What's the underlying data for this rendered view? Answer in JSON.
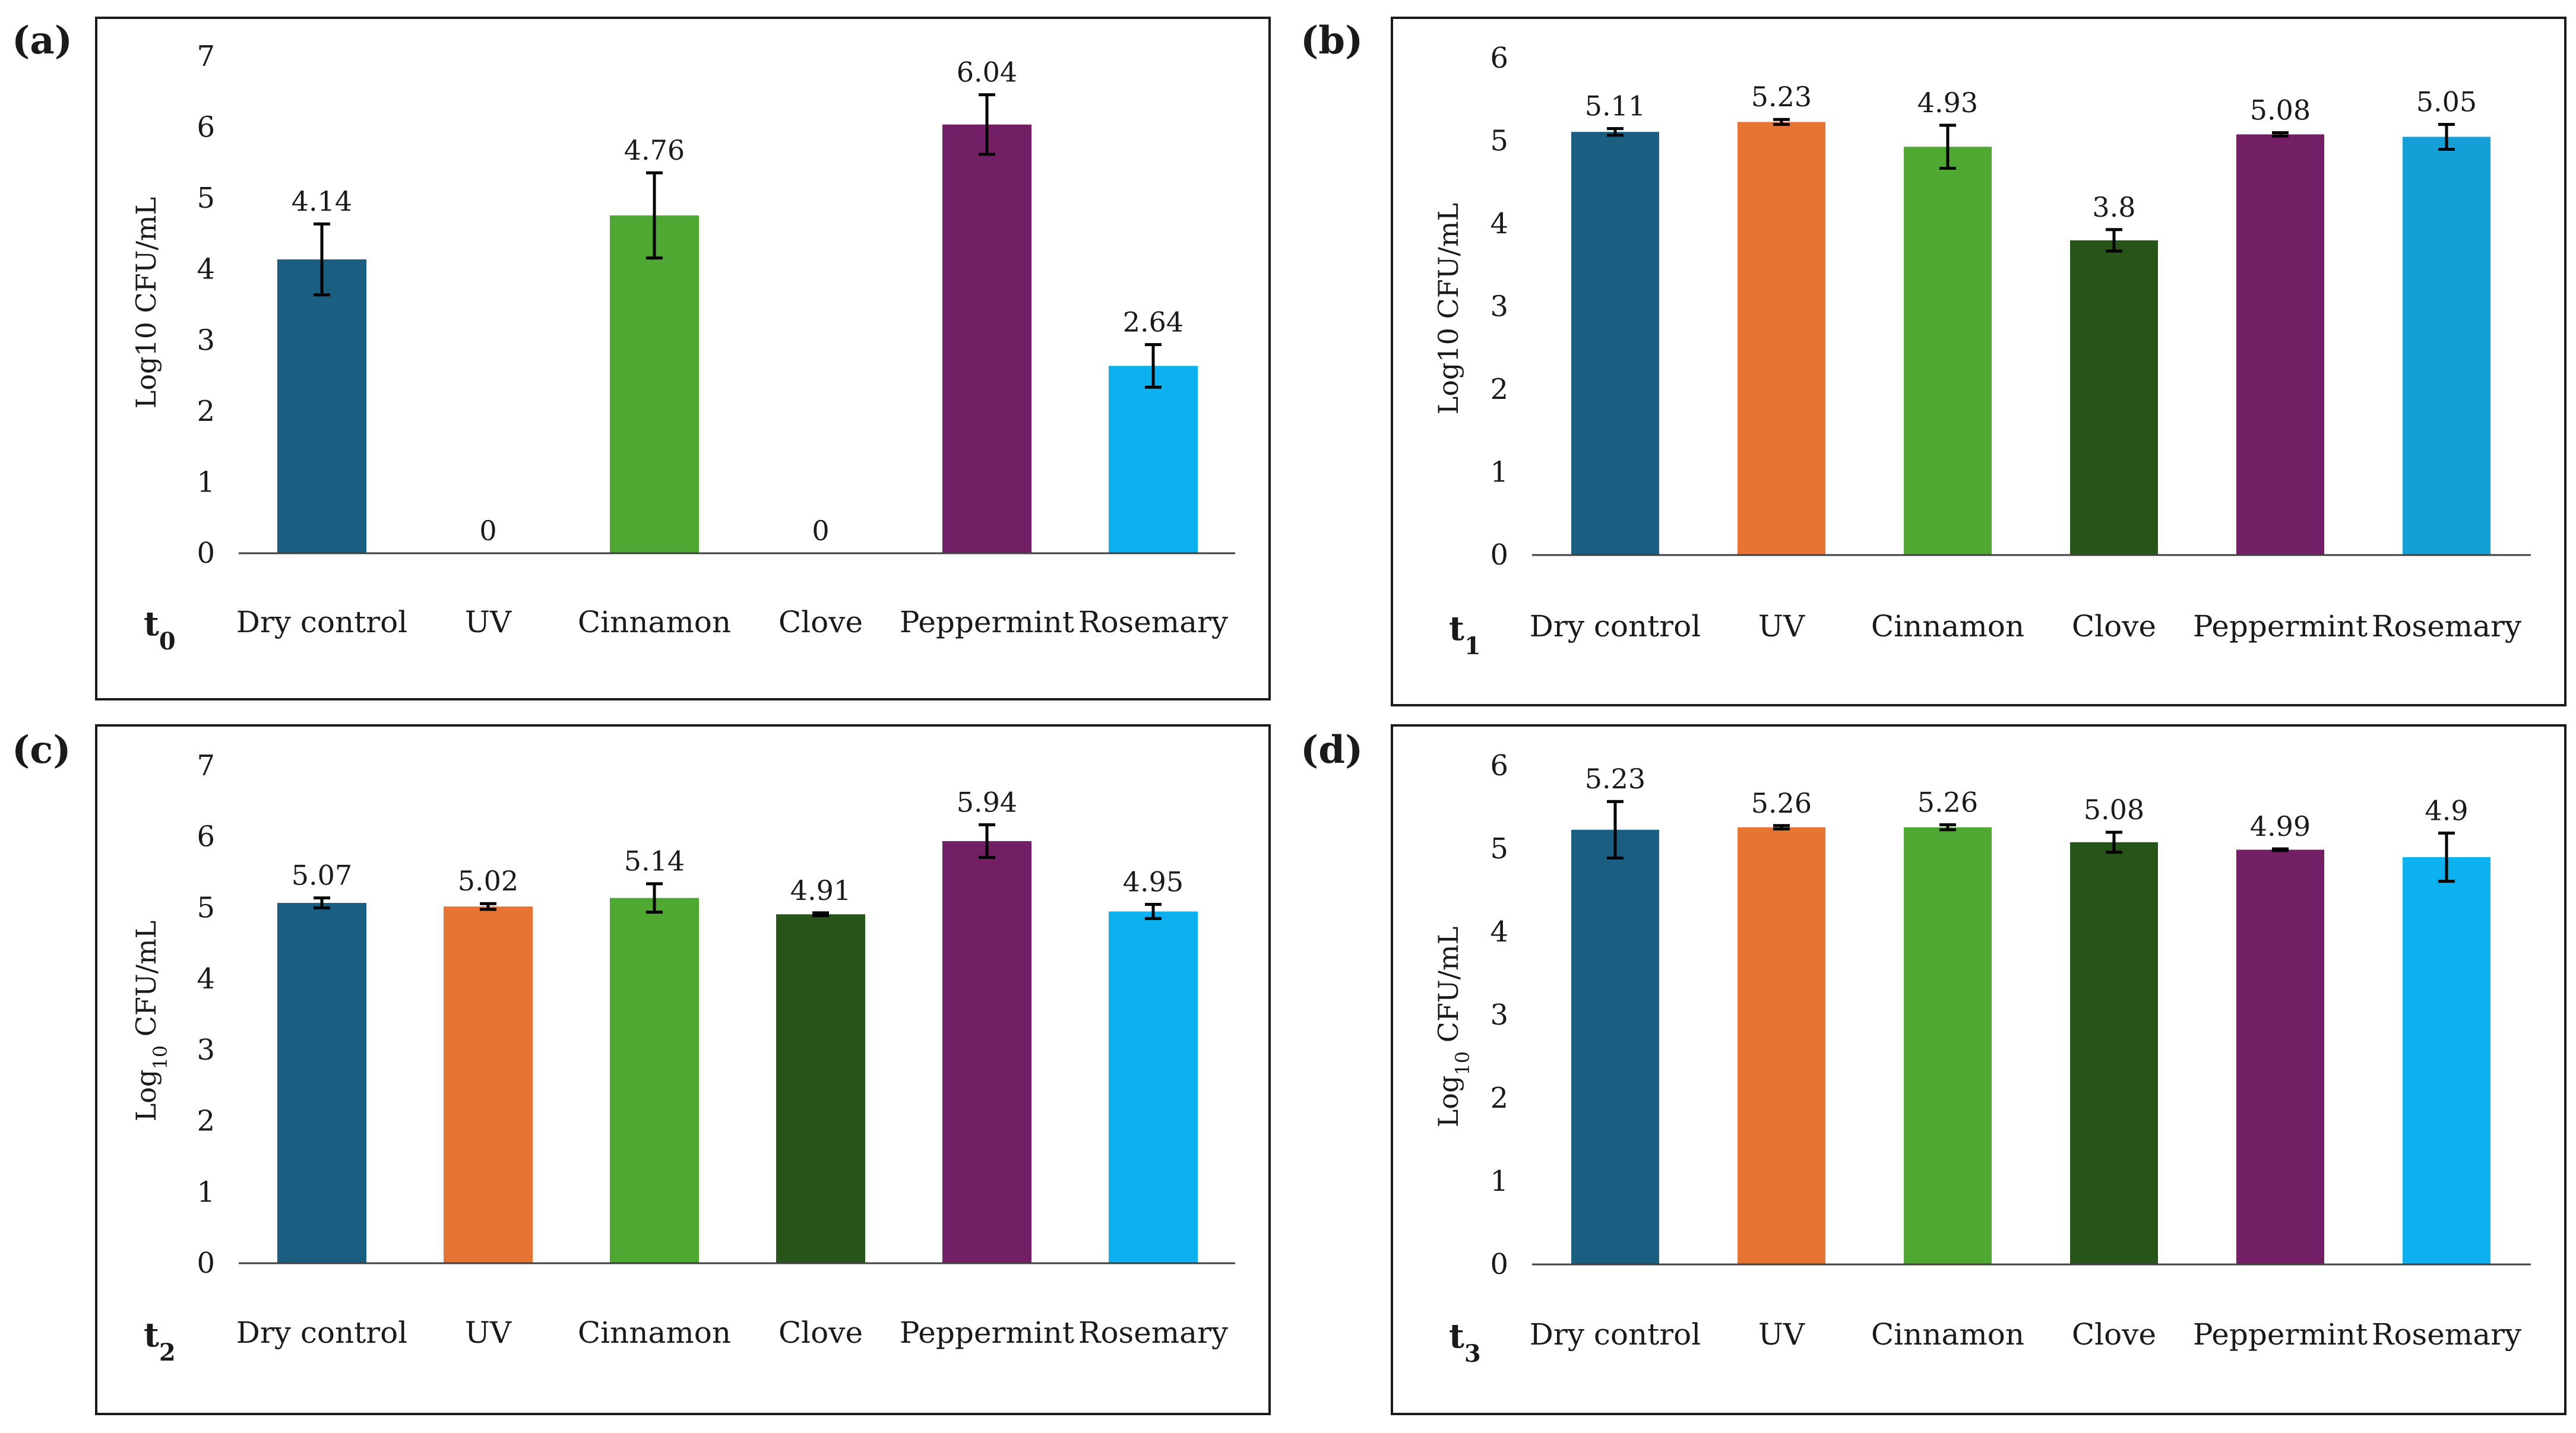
{
  "panels": [
    {
      "letter": "(a)",
      "time_label": "t",
      "time_sub": "0",
      "chart_data": {
        "type": "bar",
        "ylabel_pre": "Log10 CFU/mL",
        "ylabel_sub": "",
        "ylabel_post": "",
        "ylim": [
          0,
          7
        ],
        "yticks": [
          "0",
          "1",
          "2",
          "3",
          "4",
          "5",
          "6",
          "7"
        ],
        "categories": [
          "Dry control",
          "UV",
          "Cinnamon",
          "Clove",
          "Peppermint",
          "Rosemary"
        ],
        "values": [
          4.14,
          0,
          4.76,
          0,
          6.04,
          2.64
        ],
        "value_labels": [
          "4.14",
          "0",
          "4.76",
          "0",
          "6.04",
          "2.64"
        ],
        "errors": [
          0.5,
          0,
          0.6,
          0,
          0.42,
          0.3
        ],
        "colors": [
          "#1a5f82",
          "#e87434",
          "#4ea832",
          "#275418",
          "#731f66",
          "#0db1ef"
        ]
      }
    },
    {
      "letter": "(b)",
      "time_label": "t",
      "time_sub": "1",
      "chart_data": {
        "type": "bar",
        "ylabel_pre": "Log10 CFU/mL",
        "ylabel_sub": "",
        "ylabel_post": "",
        "ylim": [
          0,
          6
        ],
        "yticks": [
          "0",
          "1",
          "2",
          "3",
          "4",
          "5",
          "6"
        ],
        "categories": [
          "Dry control",
          "UV",
          "Cinnamon",
          "Clove",
          "Peppermint",
          "Rosemary"
        ],
        "values": [
          5.11,
          5.23,
          4.93,
          3.8,
          5.08,
          5.05
        ],
        "value_labels": [
          "5.11",
          "5.23",
          "4.93",
          "3.8",
          "5.08",
          "5.05"
        ],
        "errors": [
          0.04,
          0.03,
          0.26,
          0.13,
          0.02,
          0.15
        ],
        "colors": [
          "#1a5f82",
          "#e87434",
          "#4ea832",
          "#275418",
          "#731f66",
          "#149fd6"
        ]
      }
    },
    {
      "letter": "(c)",
      "time_label": "t",
      "time_sub": "2",
      "chart_data": {
        "type": "bar",
        "ylabel_pre": "Log",
        "ylabel_sub": "10",
        "ylabel_post": " CFU/mL",
        "ylim": [
          0,
          7
        ],
        "yticks": [
          "0",
          "1",
          "2",
          "3",
          "4",
          "5",
          "6",
          "7"
        ],
        "categories": [
          "Dry control",
          "UV",
          "Cinnamon",
          "Clove",
          "Peppermint",
          "Rosemary"
        ],
        "values": [
          5.07,
          5.02,
          5.14,
          4.91,
          5.94,
          4.95
        ],
        "value_labels": [
          "5.07",
          "5.02",
          "5.14",
          "4.91",
          "5.94",
          "4.95"
        ],
        "errors": [
          0.07,
          0.04,
          0.2,
          0.02,
          0.23,
          0.1
        ],
        "colors": [
          "#1a5f82",
          "#e87434",
          "#4ea832",
          "#275418",
          "#731f66",
          "#0db1ef"
        ]
      }
    },
    {
      "letter": "(d)",
      "time_label": "t",
      "time_sub": "3",
      "chart_data": {
        "type": "bar",
        "ylabel_pre": "Log",
        "ylabel_sub": "10",
        "ylabel_post": " CFU/mL",
        "ylim": [
          0,
          6
        ],
        "yticks": [
          "0",
          "1",
          "2",
          "3",
          "4",
          "5",
          "6"
        ],
        "categories": [
          "Dry control",
          "UV",
          "Cinnamon",
          "Clove",
          "Peppermint",
          "Rosemary"
        ],
        "values": [
          5.23,
          5.26,
          5.26,
          5.08,
          4.99,
          4.9
        ],
        "value_labels": [
          "5.23",
          "5.26",
          "5.26",
          "5.08",
          "4.99",
          "4.9"
        ],
        "errors": [
          0.34,
          0.02,
          0.03,
          0.12,
          0.01,
          0.29
        ],
        "colors": [
          "#1a5f82",
          "#e87434",
          "#4ea832",
          "#275418",
          "#731f66",
          "#0db1ef"
        ]
      }
    }
  ]
}
